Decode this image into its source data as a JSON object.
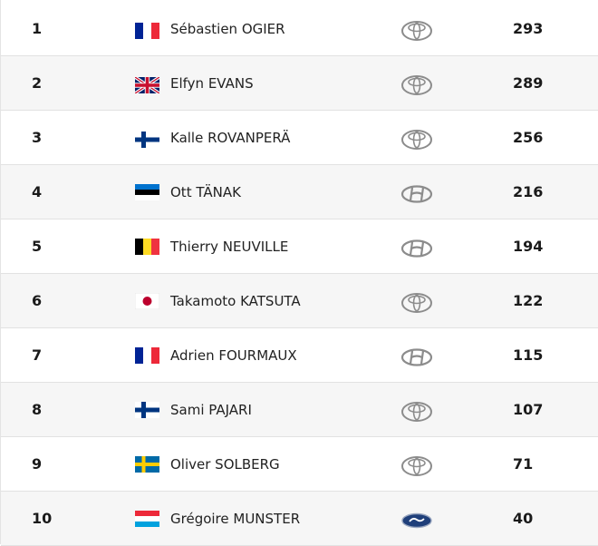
{
  "standings": [
    {
      "position": "1",
      "flag": "france-flag",
      "name": "Sébastien OGIER",
      "team": "toyota-logo",
      "points": "293"
    },
    {
      "position": "2",
      "flag": "uk-flag",
      "name": "Elfyn EVANS",
      "team": "toyota-logo",
      "points": "289"
    },
    {
      "position": "3",
      "flag": "finland-flag",
      "name": "Kalle ROVANPERÄ",
      "team": "toyota-logo",
      "points": "256"
    },
    {
      "position": "4",
      "flag": "estonia-flag",
      "name": "Ott TÄNAK",
      "team": "hyundai-logo",
      "points": "216"
    },
    {
      "position": "5",
      "flag": "belgium-flag",
      "name": "Thierry NEUVILLE",
      "team": "hyundai-logo",
      "points": "194"
    },
    {
      "position": "6",
      "flag": "japan-flag",
      "name": "Takamoto KATSUTA",
      "team": "toyota-logo",
      "points": "122"
    },
    {
      "position": "7",
      "flag": "france-flag",
      "name": "Adrien FOURMAUX",
      "team": "hyundai-logo",
      "points": "115"
    },
    {
      "position": "8",
      "flag": "finland-flag",
      "name": "Sami PAJARI",
      "team": "toyota-logo",
      "points": "107"
    },
    {
      "position": "9",
      "flag": "sweden-flag",
      "name": "Oliver SOLBERG",
      "team": "toyota-logo",
      "points": "71"
    },
    {
      "position": "10",
      "flag": "luxembourg-flag",
      "name": "Grégoire MUNSTER",
      "team": "ford-logo",
      "points": "40"
    }
  ],
  "colors": {
    "row_alt_bg": "#f6f6f6",
    "divider": "#e2e2e2",
    "logo_gray": "#8c8c8c",
    "ford_blue": "#1f3f7a"
  }
}
